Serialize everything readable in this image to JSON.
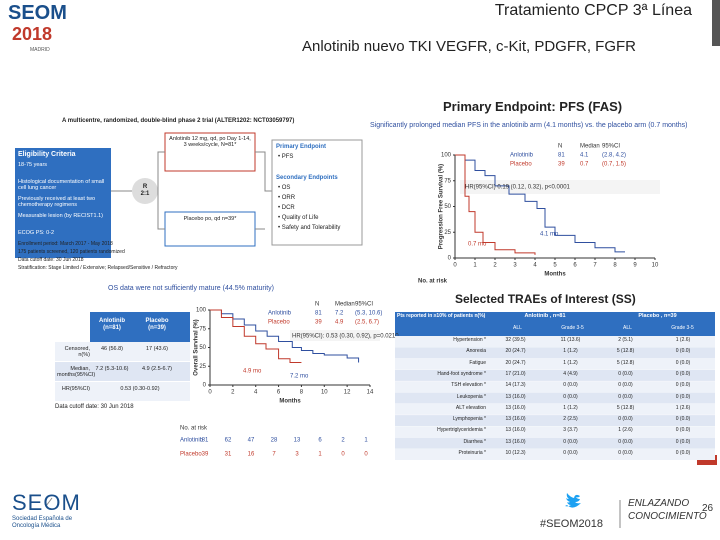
{
  "header": {
    "logo": {
      "name": "SEOM",
      "year": "2018",
      "city": "MADRID"
    },
    "title": "Tratamiento CPCP 3ª Línea",
    "subtitle": "Anlotinib  nuevo TKI VEGFR, c-Kit, PDGFR, FGFR"
  },
  "design": {
    "trial": "A multicentre, randomized, double-blind phase 2 trial (ALTER1202: NCT03059797)",
    "eligibility": {
      "title": "Eligibility Criteria",
      "items": [
        "18-75 years",
        "Histological documentation of small cell lung cancer",
        "Previously received at least two chemotherapy regimens",
        "Measurable lesion (by RECIST1.1)",
        "ECOG PS: 0-2"
      ]
    },
    "randomization": "R 2:1",
    "arms": [
      "Anlotinib 12 mg, qd, po Day 1-14, 3 weeks/cycle, N=81*",
      "Placebo po, qd n=39*"
    ],
    "endpoints": {
      "primary_title": "Primary Endpoint",
      "primary": "• PFS",
      "secondary_title": "Secondary Endpoints",
      "secondary": [
        "• OS",
        "• ORR",
        "• DCR",
        "• Quality of Life",
        "• Safety and Tolerability"
      ]
    },
    "notes": [
      "Enrollment period: March 2017 - May 2018",
      "175 patients screened, 120 patients randomized",
      "Data cutoff date: 30 Jun 2018",
      "Stratification: Stage Limited / Extensive; Relapsed/Sensitive / Refractory"
    ]
  },
  "pfs": {
    "title": "Primary Endpoint: PFS (FAS)",
    "bullet": "Significantly prolonged median PFS in the anlotinib arm (4.1 months) vs. the placebo arm (0.7 months)",
    "ylabel": "Progression Free Survival (%)",
    "xlabel": "Months",
    "risk": "No. at risk",
    "legend_header": [
      "N",
      "Median",
      "95%CI"
    ],
    "legend": [
      [
        "Anlotinib",
        "81",
        "4.1",
        "(2.8, 4.2)"
      ],
      [
        "Placebo",
        "39",
        "0.7",
        "(0.7, 1.5)"
      ]
    ],
    "hr": "HR(95%CI)   0.19 (0.12, 0.32), p<0.0001",
    "annotations": [
      "0.7 mo",
      "4.1 mo"
    ],
    "xticks": [
      0,
      1,
      2,
      3,
      4,
      5,
      6,
      7,
      8,
      9,
      10
    ],
    "yticks": [
      0,
      25,
      50,
      75,
      100
    ]
  },
  "os": {
    "bullet": "OS data were not sufficiently mature (44.5% maturity)",
    "table": {
      "header": [
        "",
        "Anlotinib (n=81)",
        "Placebo (n=39)"
      ],
      "rows": [
        [
          "Censored, n(%)",
          "46 (56.8)",
          "17 (43.6)"
        ],
        [
          "Median, months(95%CI)",
          "7.2 (5.3-10.6)",
          "4.9 (2.5-6.7)"
        ],
        [
          "HR(95%CI)",
          "0.53 (0.30-0.92)",
          ""
        ]
      ]
    },
    "cutoff": "Data cutoff date: 30 Jun 2018",
    "ylabel": "Overall Survival (%)",
    "xlabel": "Months",
    "risk": "No. at risk",
    "legend": [
      [
        "Anlotinib",
        "81",
        "7.2",
        "(5.3, 10.6)"
      ],
      [
        "Placebo",
        "39",
        "4.9",
        "(2.5, 6.7)"
      ]
    ],
    "legend_header": [
      "N",
      "Median",
      "95%CI"
    ],
    "hr": "HR(95%CI): 0.53 (0.30, 0.92), p=0.0210",
    "annotations": [
      "4.9 mo",
      "7.2 mo"
    ],
    "xticks": [
      0,
      2,
      4,
      6,
      8,
      10,
      12,
      14
    ],
    "yticks": [
      0,
      25,
      50,
      75,
      100
    ],
    "risk_rows": [
      [
        "Anlotinib",
        "81",
        "62",
        "47",
        "28",
        "13",
        "6",
        "2",
        "1"
      ],
      [
        "Placebo",
        "39",
        "31",
        "16",
        "7",
        "3",
        "1",
        "0",
        "0"
      ]
    ]
  },
  "traes": {
    "title": "Selected TRAEs of Interest (SS)",
    "header": [
      "Pts reported in ≥10% of patients n(%)",
      "Anlotinib , n=81",
      "Placebo , n=39"
    ],
    "subheader": [
      "ALL",
      "Grade 3-5",
      "ALL",
      "Grade 3-5"
    ],
    "rows": [
      [
        "Hypertension *",
        "32 (39.5)",
        "11 (13.6)",
        "2 (5.1)",
        "1 (2.6)"
      ],
      [
        "Anorexia",
        "20 (24.7)",
        "1 (1.2)",
        "5 (12.8)",
        "0 (0.0)"
      ],
      [
        "Fatigue",
        "20 (24.7)",
        "1 (1.2)",
        "5 (12.8)",
        "0 (0.0)"
      ],
      [
        "Hand-foot syndrome *",
        "17 (21.0)",
        "4 (4.9)",
        "0 (0.0)",
        "0 (0.0)"
      ],
      [
        "TSH elevation *",
        "14 (17.3)",
        "0 (0.0)",
        "0 (0.0)",
        "0 (0.0)"
      ],
      [
        "Leukopenia *",
        "13 (16.0)",
        "0 (0.0)",
        "0 (0.0)",
        "0 (0.0)"
      ],
      [
        "ALT elevation",
        "13 (16.0)",
        "1 (1.2)",
        "5 (12.8)",
        "1 (2.6)"
      ],
      [
        "Lymphopenia *",
        "13 (16.0)",
        "2 (2.5)",
        "0 (0.0)",
        "0 (0.0)"
      ],
      [
        "Hypertriglyceridemia *",
        "13 (16.0)",
        "3 (3.7)",
        "1 (2.6)",
        "0 (0.0)"
      ],
      [
        "Diarrhea *",
        "13 (16.0)",
        "0 (0.0)",
        "0 (0.0)",
        "0 (0.0)"
      ],
      [
        "Proteinuria *",
        "10 (12.3)",
        "0 (0.0)",
        "0 (0.0)",
        "0 (0.0)"
      ]
    ]
  },
  "footer": {
    "org": "SEOM",
    "org_full": "Sociedad Española de Oncología Médica",
    "hashtag": "#SEOM2018",
    "slogan": [
      "ENLAZANDO",
      "CONOCIMIENTO"
    ],
    "page": "26"
  }
}
